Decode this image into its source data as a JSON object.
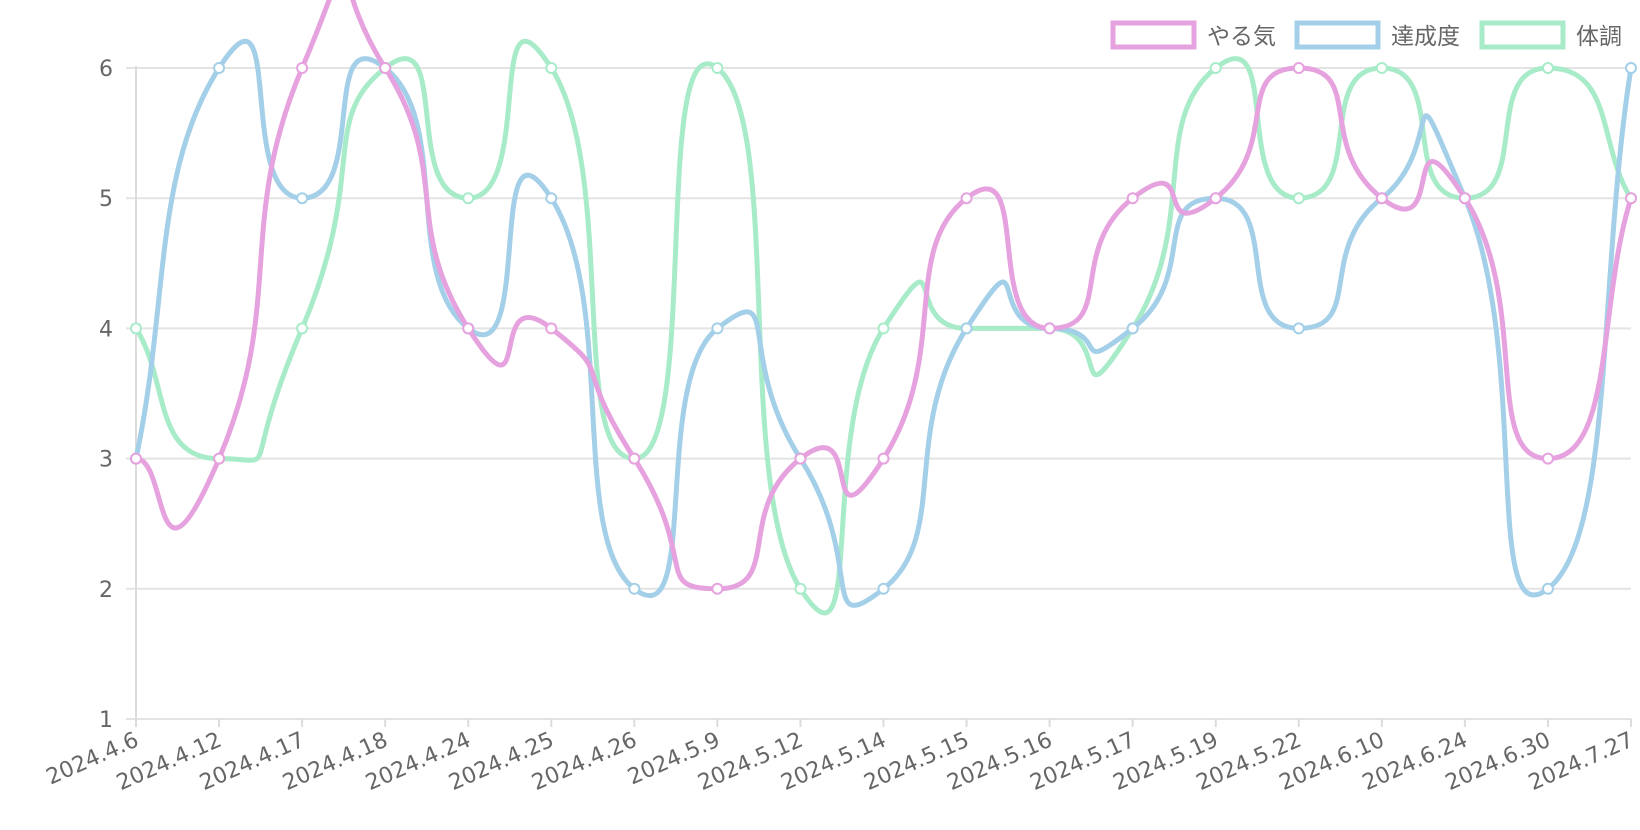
{
  "chart_data": {
    "type": "line",
    "categories": [
      "2024.4.6",
      "2024.4.12",
      "2024.4.17",
      "2024.4.18",
      "2024.4.24",
      "2024.4.25",
      "2024.4.26",
      "2024.5.9",
      "2024.5.12",
      "2024.5.14",
      "2024.5.15",
      "2024.5.16",
      "2024.5.17",
      "2024.5.19",
      "2024.5.22",
      "2024.6.10",
      "2024.6.24",
      "2024.6.30",
      "2024.7.27"
    ],
    "series": [
      {
        "name": "やる気",
        "color": "#e6a2de",
        "values": [
          3,
          3,
          6,
          6,
          4,
          4,
          3,
          2,
          3,
          3,
          5,
          4,
          5,
          5,
          6,
          5,
          5,
          3,
          5
        ]
      },
      {
        "name": "達成度",
        "color": "#a3cfe8",
        "values": [
          3,
          6,
          5,
          6,
          4,
          5,
          2,
          4,
          3,
          2,
          4,
          4,
          4,
          5,
          4,
          5,
          5,
          2,
          6
        ]
      },
      {
        "name": "体調",
        "color": "#a8ebc9",
        "values": [
          4,
          3,
          4,
          6,
          5,
          6,
          3,
          6,
          2,
          4,
          4,
          4,
          4,
          6,
          5,
          6,
          5,
          6,
          5
        ]
      }
    ],
    "yticks": [
      1,
      2,
      3,
      4,
      5,
      6
    ],
    "ylim": [
      1,
      6
    ],
    "grid": true,
    "legend_position": "top-right",
    "title": "",
    "xlabel": "",
    "ylabel": ""
  }
}
